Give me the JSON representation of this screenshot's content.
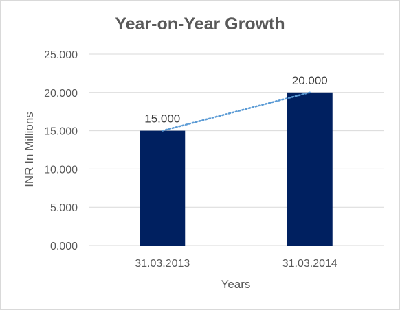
{
  "chart_data": {
    "type": "bar",
    "title": "Year-on-Year Growth",
    "xlabel": "Years",
    "ylabel": "INR In Millions",
    "categories": [
      "31.03.2013",
      "31.03.2014"
    ],
    "values": [
      15,
      20
    ],
    "data_labels": [
      "15.000",
      "20.000"
    ],
    "ylim": [
      0,
      25
    ],
    "yticks": [
      0,
      5,
      10,
      15,
      20,
      25
    ],
    "ytick_labels": [
      "0.000",
      "5.000",
      "10.000",
      "15.000",
      "20.000",
      "25.000"
    ],
    "grid": true,
    "legend": "none",
    "trendline": "linear",
    "colors": {
      "bar": "#002060",
      "trendline": "#5b9bd5",
      "grid": "#d9d9d9",
      "text": "#595959"
    }
  }
}
